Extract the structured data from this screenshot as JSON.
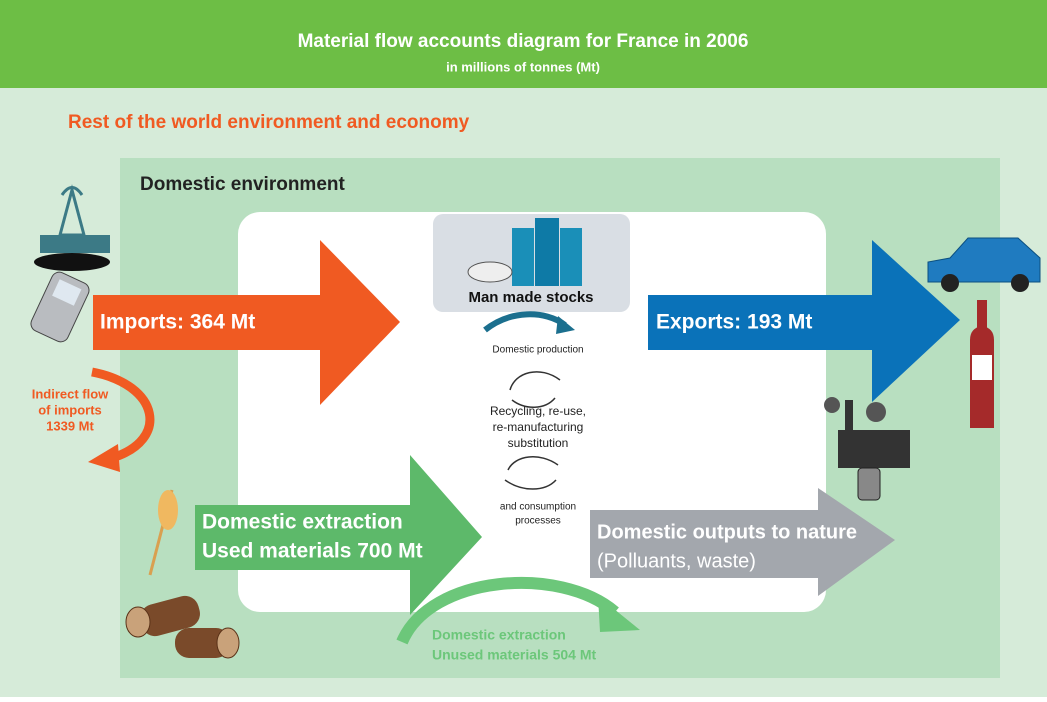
{
  "header": {
    "title": "Material flow accounts diagram for France in 2006",
    "subtitle": "in millions of tonnes (Mt)"
  },
  "outer_label": "Rest of the world environment and economy",
  "inner_label": "Domestic environment",
  "stocks": "Man made stocks",
  "flows": {
    "imports": "Imports: 364 Mt",
    "exports": "Exports: 193 Mt",
    "indirect": [
      "Indirect flow",
      "of imports",
      "1339 Mt"
    ],
    "extraction_used": [
      "Domestic extraction",
      "Used materials 700 Mt"
    ],
    "outputs": [
      "Domestic outputs to nature",
      "(Polluants, waste)"
    ],
    "extraction_unused": [
      "Domestic extraction",
      "Unused materials 504 Mt"
    ]
  },
  "processes": {
    "production": "Domestic production",
    "recycling": [
      "Recycling, re-use,",
      "re-manufacturing",
      "substitution"
    ],
    "consumption": [
      "and consumption",
      "processes"
    ]
  }
}
